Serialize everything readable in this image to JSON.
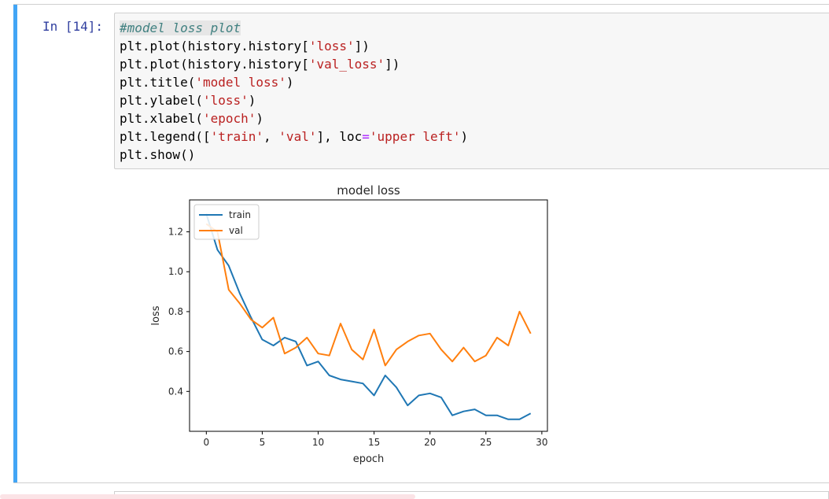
{
  "cell": {
    "prompt": "In [14]:",
    "code_lines": [
      [
        {
          "t": "#model loss plot",
          "c": "cmt"
        }
      ],
      [
        {
          "t": "plt.plot(history.history["
        },
        {
          "t": "'loss'",
          "c": "str"
        },
        {
          "t": "])"
        }
      ],
      [
        {
          "t": "plt.plot(history.history["
        },
        {
          "t": "'val_loss'",
          "c": "str"
        },
        {
          "t": "])"
        }
      ],
      [
        {
          "t": "plt.title("
        },
        {
          "t": "'model loss'",
          "c": "str"
        },
        {
          "t": ")"
        }
      ],
      [
        {
          "t": "plt.ylabel("
        },
        {
          "t": "'loss'",
          "c": "str"
        },
        {
          "t": ")"
        }
      ],
      [
        {
          "t": "plt.xlabel("
        },
        {
          "t": "'epoch'",
          "c": "str"
        },
        {
          "t": ")"
        }
      ],
      [
        {
          "t": "plt.legend(["
        },
        {
          "t": "'train'",
          "c": "str"
        },
        {
          "t": ", "
        },
        {
          "t": "'val'",
          "c": "str"
        },
        {
          "t": "], loc"
        },
        {
          "t": "=",
          "c": "kw"
        },
        {
          "t": "'upper left'",
          "c": "str"
        },
        {
          "t": ")"
        }
      ],
      [
        {
          "t": "plt.show()"
        }
      ]
    ]
  },
  "colors": {
    "cell_accent": "#42a5f5",
    "prompt": "#303f9f",
    "train": "#1f77b4",
    "val": "#ff7f0e"
  },
  "chart_data": {
    "type": "line",
    "title": "model loss",
    "xlabel": "epoch",
    "ylabel": "loss",
    "xlim": [
      -1.5,
      30.5
    ],
    "ylim": [
      0.2,
      1.36
    ],
    "xticks": [
      0,
      5,
      10,
      15,
      20,
      25,
      30
    ],
    "yticks": [
      0.4,
      0.6,
      0.8,
      1.0,
      1.2
    ],
    "legend_position": "upper left",
    "grid": false,
    "x": [
      0,
      1,
      2,
      3,
      4,
      5,
      6,
      7,
      8,
      9,
      10,
      11,
      12,
      13,
      14,
      15,
      16,
      17,
      18,
      19,
      20,
      21,
      22,
      23,
      24,
      25,
      26,
      27,
      28,
      29
    ],
    "series": [
      {
        "name": "train",
        "color": "#1f77b4",
        "values": [
          1.29,
          1.11,
          1.03,
          0.89,
          0.77,
          0.66,
          0.63,
          0.67,
          0.65,
          0.53,
          0.55,
          0.48,
          0.46,
          0.45,
          0.44,
          0.38,
          0.48,
          0.42,
          0.33,
          0.38,
          0.39,
          0.37,
          0.28,
          0.3,
          0.31,
          0.28,
          0.28,
          0.26,
          0.26,
          0.29
        ]
      },
      {
        "name": "val",
        "color": "#ff7f0e",
        "values": [
          1.24,
          1.2,
          0.91,
          0.84,
          0.76,
          0.72,
          0.77,
          0.59,
          0.62,
          0.67,
          0.59,
          0.58,
          0.74,
          0.61,
          0.56,
          0.71,
          0.53,
          0.61,
          0.65,
          0.68,
          0.69,
          0.61,
          0.55,
          0.62,
          0.55,
          0.58,
          0.67,
          0.63,
          0.8,
          0.69
        ]
      }
    ]
  }
}
